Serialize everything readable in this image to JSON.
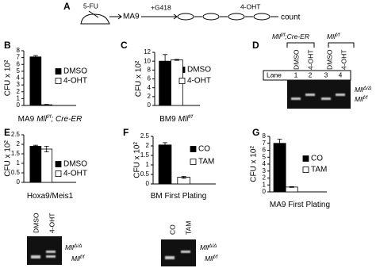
{
  "panel_a": {
    "label": "A",
    "steps": [
      "5-FU",
      "MA9",
      "+G418",
      "4-OHT",
      "count"
    ]
  },
  "chart_data": [
    {
      "type": "bar",
      "panel": "B",
      "y_label": "CFU x 10²",
      "x_label": [
        "MA9",
        "Mll",
        "f/f",
        "; Cre-ER"
      ],
      "categories": [
        "DMSO",
        "4-OHT"
      ],
      "values": [
        7.1,
        0.1
      ],
      "errors": [
        0.2,
        0.05
      ],
      "colors": [
        "#000000",
        "#ffffff"
      ],
      "ylim": [
        0,
        8
      ],
      "yticks": [
        0,
        1,
        2,
        3,
        4,
        5,
        6,
        7,
        8
      ]
    },
    {
      "type": "bar",
      "panel": "C",
      "y_label": "CFU x 10²",
      "x_label": [
        "BM9",
        "Mll",
        "f/f"
      ],
      "categories": [
        "DMSO",
        "4-OHT"
      ],
      "values": [
        10,
        10.3
      ],
      "errors": [
        1.5,
        0.1
      ],
      "colors": [
        "#000000",
        "#ffffff"
      ],
      "ylim": [
        0,
        12
      ],
      "yticks": [
        0,
        2,
        4,
        6,
        8,
        10,
        12
      ]
    },
    {
      "type": "bar",
      "panel": "E",
      "y_label": "CFU x 10²",
      "x_label": [
        "Hoxa9/Meis1"
      ],
      "categories": [
        "DMSO",
        "4-OHT"
      ],
      "values": [
        1.9,
        1.75
      ],
      "errors": [
        0.05,
        0.15
      ],
      "colors": [
        "#000000",
        "#ffffff"
      ],
      "ylim": [
        0,
        2.5
      ],
      "yticks": [
        0,
        0.5,
        1,
        1.5,
        2,
        2.5
      ]
    },
    {
      "type": "bar",
      "panel": "F",
      "y_label": "CFU x 10²",
      "x_label": [
        "BM First Plating"
      ],
      "categories": [
        "CO",
        "TAM"
      ],
      "values": [
        2.05,
        0.35
      ],
      "errors": [
        0.12,
        0.05
      ],
      "colors": [
        "#000000",
        "#ffffff"
      ],
      "ylim": [
        0,
        2.5
      ],
      "yticks": [
        0,
        0.5,
        1,
        1.5,
        2,
        2.5
      ]
    },
    {
      "type": "bar",
      "panel": "G",
      "y_label": "CFU x 10²",
      "x_label": [
        "MA9 First Plating"
      ],
      "categories": [
        "CO",
        "TAM"
      ],
      "values": [
        7,
        0.7
      ],
      "errors": [
        0.6,
        0.05
      ],
      "colors": [
        "#000000",
        "#ffffff"
      ],
      "ylim": [
        0,
        8
      ],
      "yticks": [
        0,
        1,
        2,
        3,
        4,
        5,
        6,
        7,
        8
      ]
    }
  ],
  "panel_d": {
    "label": "D",
    "groups": [
      {
        "gene": "Mll",
        "allele": "f/f",
        "suffix": ";Cre-ER"
      },
      {
        "gene": "Mll",
        "allele": "f/f"
      }
    ],
    "treatments": [
      "DMSO",
      "4-OHT",
      "DMSO",
      "4-OHT"
    ],
    "lane_title": "Lane",
    "lanes": [
      "1",
      "2",
      "3",
      "4"
    ],
    "bands": [
      {
        "gene": "Mll",
        "allele": "Δ/Δ"
      },
      {
        "gene": "Mll",
        "allele": "f/f"
      }
    ]
  },
  "gel_e": {
    "treatments": [
      "DMSO",
      "4-OHT"
    ],
    "bands": [
      {
        "gene": "Mll",
        "allele": "Δ/Δ"
      },
      {
        "gene": "Mll",
        "allele": "f/f"
      }
    ]
  },
  "gel_f": {
    "treatments": [
      "CO",
      "TAM"
    ],
    "bands": [
      {
        "gene": "Mll",
        "allele": "Δ/Δ"
      },
      {
        "gene": "Mll",
        "allele": "f/f"
      }
    ]
  }
}
